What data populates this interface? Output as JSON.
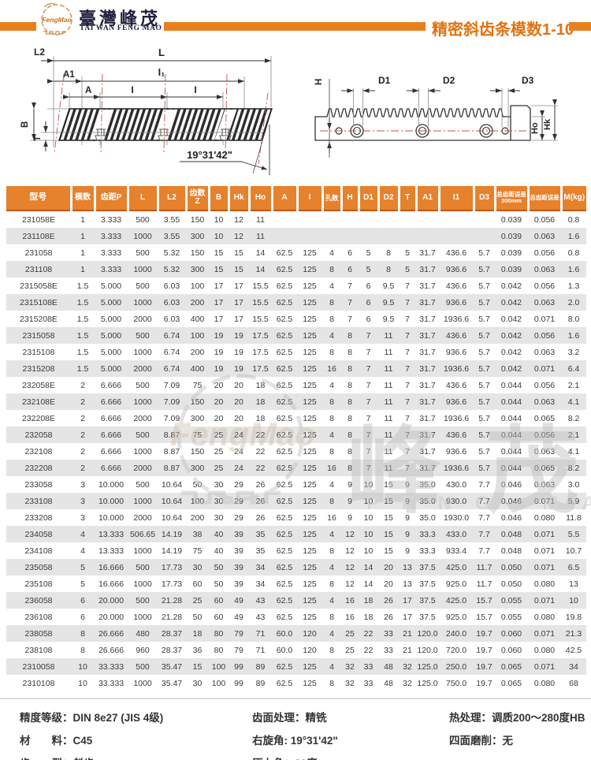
{
  "header": {
    "logo_text": "FengMao",
    "brand_cn": "臺灣峰茂",
    "brand_en": "TAI WAN FENG MAO",
    "title": "精密斜齿条模数1-10",
    "accent_color": "#e8801f"
  },
  "drawing_left": {
    "labels": {
      "l2": "L2",
      "l": "L",
      "a1": "A1",
      "i1": "I₁",
      "a": "A",
      "i_first": "I",
      "i_second": "I",
      "b": "B",
      "t": "T",
      "angle": "19°31'42\""
    }
  },
  "drawing_right": {
    "labels": {
      "h": "H",
      "d1": "D1",
      "d2": "D2",
      "d3": "D3",
      "ho": "Ho",
      "hk": "Hk"
    }
  },
  "watermark": {
    "gear_text": "FengMao",
    "cn": "峰茂",
    "en": "FENG MAO"
  },
  "table": {
    "columns": [
      {
        "lines": [
          "型号"
        ]
      },
      {
        "lines": [
          "模数"
        ]
      },
      {
        "lines": [
          "齿距P"
        ]
      },
      {
        "lines": [
          "L"
        ]
      },
      {
        "lines": [
          "L2"
        ]
      },
      {
        "lines": [
          "齿数",
          "Z"
        ]
      },
      {
        "lines": [
          "B"
        ]
      },
      {
        "lines": [
          "Hk"
        ]
      },
      {
        "lines": [
          "Ho"
        ]
      },
      {
        "lines": [
          "A"
        ]
      },
      {
        "lines": [
          "I"
        ]
      },
      {
        "lines": [
          "孔数"
        ]
      },
      {
        "lines": [
          "H"
        ]
      },
      {
        "lines": [
          "D1"
        ]
      },
      {
        "lines": [
          "D2"
        ]
      },
      {
        "lines": [
          "T"
        ]
      },
      {
        "lines": [
          "A1"
        ]
      },
      {
        "lines": [
          "I1"
        ]
      },
      {
        "lines": [
          "D3"
        ]
      },
      {
        "lines": [
          "总齿距误差",
          "300mm"
        ]
      },
      {
        "lines": [
          "总齿距误差"
        ]
      },
      {
        "lines": [
          "M(kg)"
        ]
      }
    ],
    "rows": [
      [
        "231058E",
        "1",
        "3.333",
        "500",
        "3.55",
        "150",
        "10",
        "12",
        "11",
        "",
        "",
        "",
        "",
        "",
        "",
        "",
        "",
        "",
        "",
        "0.039",
        "0.056",
        "0.8"
      ],
      [
        "231108E",
        "1",
        "3.333",
        "1000",
        "3.55",
        "300",
        "10",
        "12",
        "11",
        "",
        "",
        "",
        "",
        "",
        "",
        "",
        "",
        "",
        "",
        "0.039",
        "0.063",
        "1.6"
      ],
      [
        "231058",
        "1",
        "3.333",
        "500",
        "5.32",
        "150",
        "15",
        "15",
        "14",
        "62.5",
        "125",
        "4",
        "6",
        "5",
        "8",
        "5",
        "31.7",
        "436.6",
        "5.7",
        "0.039",
        "0.056",
        "0.8"
      ],
      [
        "231108",
        "1",
        "3.333",
        "1000",
        "5.32",
        "300",
        "15",
        "15",
        "14",
        "62.5",
        "125",
        "8",
        "6",
        "5",
        "8",
        "5",
        "31.7",
        "936.6",
        "5.7",
        "0.039",
        "0.063",
        "1.6"
      ],
      [
        "2315058E",
        "1.5",
        "5.000",
        "500",
        "6.03",
        "100",
        "17",
        "17",
        "15.5",
        "62.5",
        "125",
        "4",
        "7",
        "6",
        "9.5",
        "7",
        "31.7",
        "436.6",
        "5.7",
        "0.042",
        "0.056",
        "1.3"
      ],
      [
        "2315108E",
        "1.5",
        "5.000",
        "1000",
        "6.03",
        "200",
        "17",
        "17",
        "15.5",
        "62.5",
        "125",
        "8",
        "7",
        "6",
        "9.5",
        "7",
        "31.7",
        "936.6",
        "5.7",
        "0.042",
        "0.063",
        "2.0"
      ],
      [
        "2315208E",
        "1.5",
        "5.000",
        "2000",
        "6.03",
        "400",
        "17",
        "17",
        "15.5",
        "62.5",
        "125",
        "8",
        "7",
        "6",
        "9.5",
        "7",
        "31.7",
        "1936.6",
        "5.7",
        "0.042",
        "0.071",
        "8.0"
      ],
      [
        "2315058",
        "1.5",
        "5.000",
        "500",
        "6.74",
        "100",
        "19",
        "19",
        "17.5",
        "62.5",
        "125",
        "4",
        "8",
        "7",
        "11",
        "7",
        "31.7",
        "436.6",
        "5.7",
        "0.042",
        "0.056",
        "1.6"
      ],
      [
        "2315108",
        "1.5",
        "5.000",
        "1000",
        "6.74",
        "200",
        "19",
        "19",
        "17.5",
        "62.5",
        "125",
        "8",
        "8",
        "7",
        "11",
        "7",
        "31.7",
        "936.6",
        "5.7",
        "0.042",
        "0.063",
        "3.2"
      ],
      [
        "2315208",
        "1.5",
        "5.000",
        "2000",
        "6.74",
        "400",
        "19",
        "19",
        "17.5",
        "62.5",
        "125",
        "16",
        "8",
        "7",
        "11",
        "7",
        "31.7",
        "1936.6",
        "5.7",
        "0.042",
        "0.071",
        "6.4"
      ],
      [
        "232058E",
        "2",
        "6.666",
        "500",
        "7.09",
        "75",
        "20",
        "20",
        "18",
        "62.5",
        "125",
        "4",
        "8",
        "7",
        "11",
        "7",
        "31.7",
        "436.6",
        "5.7",
        "0.044",
        "0.056",
        "2.1"
      ],
      [
        "232108E",
        "2",
        "6.666",
        "1000",
        "7.09",
        "150",
        "20",
        "20",
        "18",
        "62.5",
        "125",
        "8",
        "8",
        "7",
        "11",
        "7",
        "31.7",
        "936.6",
        "5.7",
        "0.044",
        "0.063",
        "4.1"
      ],
      [
        "232208E",
        "2",
        "6.666",
        "2000",
        "7.09",
        "300",
        "20",
        "20",
        "18",
        "62.5",
        "125",
        "8",
        "8",
        "7",
        "11",
        "7",
        "31.7",
        "1936.6",
        "5.7",
        "0.044",
        "0.065",
        "8.2"
      ],
      [
        "232058",
        "2",
        "6.666",
        "500",
        "8.87",
        "75",
        "25",
        "24",
        "22",
        "62.5",
        "125",
        "4",
        "8",
        "7",
        "11",
        "7",
        "31.7",
        "436.6",
        "5.7",
        "0.044",
        "0.056",
        "2.1"
      ],
      [
        "232108",
        "2",
        "6.666",
        "1000",
        "8.87",
        "150",
        "25",
        "24",
        "22",
        "62.5",
        "125",
        "8",
        "8",
        "7",
        "11",
        "7",
        "31.7",
        "936.6",
        "5.7",
        "0.044",
        "0.063",
        "4.1"
      ],
      [
        "232208",
        "2",
        "6.666",
        "2000",
        "8.87",
        "300",
        "25",
        "24",
        "22",
        "62.5",
        "125",
        "16",
        "8",
        "7",
        "11",
        "7",
        "31.7",
        "1936.6",
        "5.7",
        "0.044",
        "0.065",
        "8.2"
      ],
      [
        "233058",
        "3",
        "10.000",
        "500",
        "10.64",
        "50",
        "30",
        "29",
        "26",
        "62.5",
        "125",
        "4",
        "9",
        "10",
        "15",
        "9",
        "35.0",
        "430.0",
        "7.7",
        "0.046",
        "0.063",
        "3.0"
      ],
      [
        "233108",
        "3",
        "10.000",
        "1000",
        "10.64",
        "100",
        "30",
        "29",
        "26",
        "62.5",
        "125",
        "8",
        "9",
        "10",
        "15",
        "9",
        "35.0",
        "930.0",
        "7.7",
        "0.046",
        "0.071",
        "5.9"
      ],
      [
        "233208",
        "3",
        "10.000",
        "2000",
        "10.64",
        "200",
        "30",
        "29",
        "26",
        "62.5",
        "125",
        "16",
        "9",
        "10",
        "15",
        "9",
        "35.0",
        "1930.0",
        "7.7",
        "0.046",
        "0.080",
        "11.8"
      ],
      [
        "234058",
        "4",
        "13.333",
        "506.65",
        "14.19",
        "38",
        "40",
        "39",
        "35",
        "62.5",
        "125",
        "4",
        "12",
        "10",
        "15",
        "9",
        "33.3",
        "433.0",
        "7.7",
        "0.048",
        "0.071",
        "5.5"
      ],
      [
        "234108",
        "4",
        "13.333",
        "1000",
        "14.19",
        "75",
        "40",
        "39",
        "35",
        "62.5",
        "125",
        "8",
        "12",
        "10",
        "15",
        "9",
        "33.3",
        "933.4",
        "7.7",
        "0.048",
        "0.071",
        "10.7"
      ],
      [
        "235058",
        "5",
        "16.666",
        "500",
        "17.73",
        "30",
        "50",
        "39",
        "34",
        "62.5",
        "125",
        "4",
        "12",
        "14",
        "20",
        "13",
        "37.5",
        "425.0",
        "11.7",
        "0.050",
        "0.071",
        "6.5"
      ],
      [
        "235108",
        "5",
        "16.666",
        "1000",
        "17.73",
        "60",
        "50",
        "39",
        "34",
        "62.5",
        "125",
        "8",
        "12",
        "14",
        "20",
        "13",
        "37.5",
        "925.0",
        "11.7",
        "0.050",
        "0.080",
        "13"
      ],
      [
        "236058",
        "6",
        "20.000",
        "500",
        "21.28",
        "25",
        "60",
        "49",
        "43",
        "62.5",
        "125",
        "4",
        "16",
        "18",
        "26",
        "17",
        "37.5",
        "425.0",
        "15.7",
        "0.055",
        "0.071",
        "10"
      ],
      [
        "236108",
        "6",
        "20.000",
        "1000",
        "21.28",
        "50",
        "60",
        "49",
        "43",
        "62.5",
        "125",
        "8",
        "16",
        "18",
        "26",
        "17",
        "37.5",
        "925.0",
        "15.7",
        "0.055",
        "0.080",
        "19.8"
      ],
      [
        "238058",
        "8",
        "26.666",
        "480",
        "28.37",
        "18",
        "80",
        "79",
        "71",
        "60.0",
        "120",
        "4",
        "25",
        "22",
        "33",
        "21",
        "120.0",
        "240.0",
        "19.7",
        "0.060",
        "0.071",
        "21.3"
      ],
      [
        "238108",
        "8",
        "26.666",
        "960",
        "28.37",
        "36",
        "80",
        "79",
        "71",
        "60.0",
        "120",
        "8",
        "25",
        "22",
        "33",
        "21",
        "120.0",
        "720.0",
        "19.7",
        "0.060",
        "0.080",
        "42.5"
      ],
      [
        "2310058",
        "10",
        "33.333",
        "500",
        "35.47",
        "15",
        "100",
        "99",
        "89",
        "62.5",
        "125",
        "4",
        "32",
        "33",
        "48",
        "32",
        "125.0",
        "250.0",
        "19.7",
        "0.065",
        "0.071",
        "34"
      ],
      [
        "2310108",
        "10",
        "33.333",
        "1000",
        "35.47",
        "30",
        "100",
        "99",
        "89",
        "62.5",
        "125",
        "8",
        "32",
        "33",
        "48",
        "32",
        "125.0",
        "750.0",
        "19.7",
        "0.065",
        "0.080",
        "68"
      ]
    ]
  },
  "footer": {
    "col1": [
      "精度等级：DIN 8e27 (JIS 4级)",
      "材　　料：C45",
      "齿　　型：斜齿"
    ],
    "col2": [
      "齿面处理：精铣",
      "右旋角:  19°31'42\"",
      "压力角：20度"
    ],
    "col3": [
      "热处理：调质200～280度HB",
      "四面磨削：无"
    ]
  }
}
